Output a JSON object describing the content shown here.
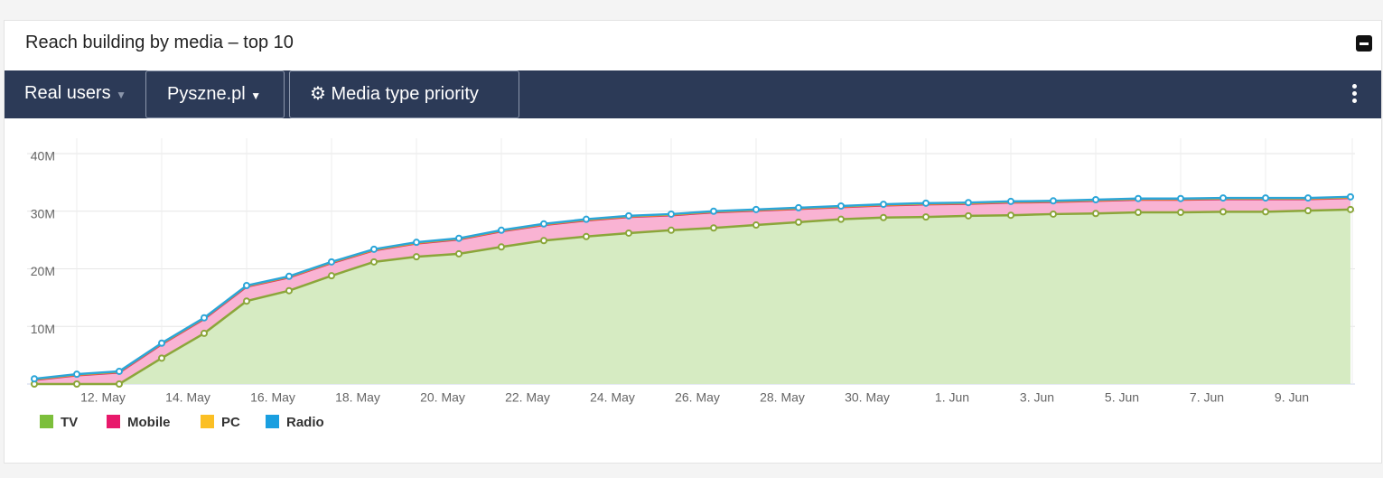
{
  "header": {
    "title": "Reach building by media – top 10"
  },
  "toolbar": {
    "audience": "Real users",
    "brand": "Pyszne.pl",
    "settings": "Media type priority"
  },
  "chart_data": {
    "type": "stacked-area",
    "categories": [
      null,
      "12. May",
      null,
      "14. May",
      null,
      "16. May",
      null,
      "18. May",
      null,
      "20. May",
      null,
      "22. May",
      null,
      "24. May",
      null,
      "26. May",
      null,
      "28. May",
      null,
      "30. May",
      null,
      "1. Jun",
      null,
      "3. Jun",
      null,
      "5. Jun",
      null,
      "7. Jun",
      null,
      "9. Jun",
      null,
      null
    ],
    "series": [
      {
        "name": "TV",
        "color": "#7cbf3b",
        "values": [
          0,
          0,
          0,
          4.5,
          8.8,
          14.4,
          16.2,
          18.8,
          21.2,
          22.1,
          22.6,
          23.8,
          24.9,
          25.6,
          26.2,
          26.7,
          27.1,
          27.6,
          28.1,
          28.6,
          28.9,
          29.0,
          29.2,
          29.3,
          29.5,
          29.6,
          29.8,
          29.8,
          29.9,
          29.9,
          30.1,
          30.3
        ]
      },
      {
        "name": "Mobile",
        "color": "#e8196b",
        "values": [
          0.7,
          1.5,
          2.0,
          2.4,
          2.5,
          2.5,
          2.3,
          2.2,
          2.0,
          2.3,
          2.5,
          2.7,
          2.7,
          2.8,
          2.8,
          2.6,
          2.7,
          2.5,
          2.3,
          2.1,
          2.1,
          2.2,
          2.1,
          2.2,
          2.1,
          2.2,
          2.2,
          2.2,
          2.2,
          2.2,
          2.0,
          2.0
        ]
      },
      {
        "name": "PC",
        "color": "#fbbf24",
        "values": [
          0,
          0,
          0,
          0,
          0,
          0,
          0,
          0,
          0,
          0,
          0,
          0,
          0,
          0,
          0,
          0,
          0,
          0,
          0,
          0,
          0,
          0,
          0,
          0,
          0,
          0,
          0,
          0,
          0,
          0,
          0,
          0
        ]
      },
      {
        "name": "Radio",
        "color": "#1a9fe0",
        "values": [
          0.2,
          0.2,
          0.2,
          0.2,
          0.2,
          0.2,
          0.2,
          0.2,
          0.2,
          0.2,
          0.2,
          0.2,
          0.2,
          0.2,
          0.2,
          0.2,
          0.2,
          0.2,
          0.2,
          0.2,
          0.2,
          0.2,
          0.2,
          0.2,
          0.2,
          0.2,
          0.2,
          0.2,
          0.2,
          0.2,
          0.2,
          0.2
        ]
      }
    ],
    "ylim": [
      0,
      40
    ],
    "yticks": [
      0,
      {
        "value": 10,
        "label": "10M"
      },
      {
        "value": 20,
        "label": "20M"
      },
      {
        "value": 30,
        "label": "30M"
      },
      {
        "value": 40,
        "label": "40M"
      }
    ],
    "grid": true,
    "legend": "bottom-left"
  }
}
